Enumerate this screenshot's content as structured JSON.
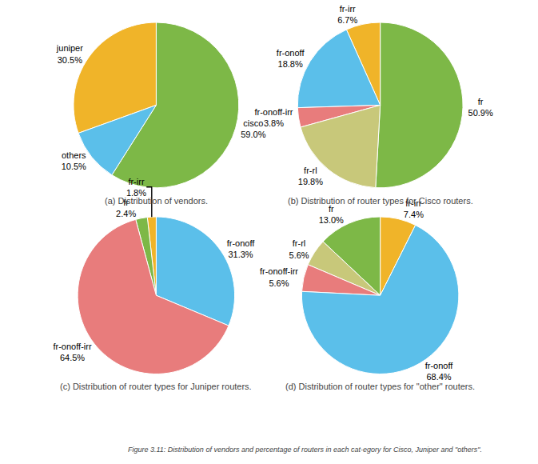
{
  "chart_data": [
    {
      "type": "pie",
      "title": "(a) Distribution of vendors.",
      "categories": [
        "cisco",
        "juniper",
        "others"
      ],
      "values": [
        59.0,
        30.5,
        10.5
      ],
      "value_labels": [
        "59.0%",
        "30.5%",
        "10.5%"
      ],
      "colors": [
        "#7db847",
        "#f0b429",
        "#5bbfea"
      ],
      "data_labels": true
    },
    {
      "type": "pie",
      "title": "(b) Distribution of router types for Cisco routers.",
      "categories": [
        "fr",
        "fr-irr",
        "fr-onoff",
        "fr-onoff-irr",
        "fr-rl"
      ],
      "values": [
        50.9,
        6.7,
        18.8,
        3.8,
        19.8
      ],
      "value_labels": [
        "50.9%",
        "6.7%",
        "18.8%",
        "3.8%",
        "19.8%"
      ],
      "colors": [
        "#7db847",
        "#f0b429",
        "#5bbfea",
        "#e87c7c",
        "#c8c87a"
      ],
      "data_labels": true
    },
    {
      "type": "pie",
      "title": "(c) Distribution of router types for Juniper routers.",
      "categories": [
        "fr-onoff",
        "fr-irr",
        "fr",
        "fr-onoff-irr"
      ],
      "values": [
        31.3,
        1.8,
        2.4,
        64.5
      ],
      "value_labels": [
        "31.3%",
        "1.8%",
        "2.4%",
        "64.5%"
      ],
      "colors": [
        "#5bbfea",
        "#f0b429",
        "#7db847",
        "#e87c7c"
      ],
      "data_labels": true
    },
    {
      "type": "pie",
      "title": "(d) Distribution of router types for \"other\" routers.",
      "categories": [
        "fr-irr",
        "fr",
        "fr-rl",
        "fr-onoff-irr",
        "fr-onoff"
      ],
      "values": [
        7.4,
        13.0,
        5.6,
        5.6,
        68.4
      ],
      "value_labels": [
        "7.4%",
        "13.0%",
        "5.6%",
        "5.6%",
        "68.4%"
      ],
      "colors": [
        "#f0b429",
        "#7db847",
        "#c8c87a",
        "#e87c7c",
        "#5bbfea"
      ],
      "data_labels": true,
      "annotations": [
        "Figure 3.11: Distribution of vendors and percentage of routers in each cat-egory for Cisco, Juniper and \"others\"."
      ]
    }
  ]
}
